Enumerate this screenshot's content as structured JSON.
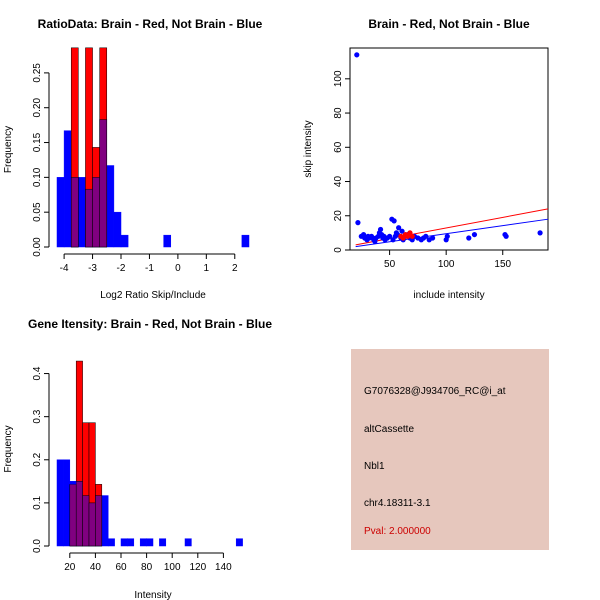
{
  "colors": {
    "brain": "#ff0000",
    "not_brain": "#0000ff",
    "overlap": "#800080",
    "panel_bg": "#e6c7bd",
    "pval_text": "#cc0000"
  },
  "chart_data": [
    {
      "type": "bar",
      "title": "RatioData: Brain - Red, Not Brain - Blue",
      "xlabel": "Log2 Ratio Skip/Include",
      "ylabel": "Frequency",
      "xlim": [
        -4.25,
        2.5
      ],
      "ylim": [
        0,
        0.28
      ],
      "xticks": [
        -4,
        -3,
        -2,
        -1,
        0,
        1,
        2
      ],
      "yticks": [
        0.0,
        0.05,
        0.1,
        0.15,
        0.2,
        0.25
      ],
      "bin_width": 0.25,
      "series": [
        {
          "name": "Not Brain",
          "bins": [
            [
              -4.25,
              0.1
            ],
            [
              -4.0,
              0.167
            ],
            [
              -3.75,
              0.1
            ],
            [
              -3.5,
              0.1
            ],
            [
              -3.25,
              0.083
            ],
            [
              -3.0,
              0.1
            ],
            [
              -2.75,
              0.183
            ],
            [
              -2.5,
              0.117
            ],
            [
              -2.25,
              0.05
            ],
            [
              -2.0,
              0.017
            ],
            [
              -1.25,
              0.0
            ],
            [
              -0.5,
              0.017
            ],
            [
              2.25,
              0.017
            ]
          ]
        },
        {
          "name": "Brain",
          "bins": [
            [
              -3.75,
              0.286
            ],
            [
              -3.25,
              0.286
            ],
            [
              -3.0,
              0.143
            ],
            [
              -2.75,
              0.286
            ]
          ]
        }
      ]
    },
    {
      "type": "scatter",
      "title": "Brain - Red, Not Brain - Blue",
      "xlabel": "include intensity",
      "ylabel": "skip intensity",
      "xlim": [
        15,
        190
      ],
      "ylim": [
        0,
        118
      ],
      "xticks": [
        50,
        100,
        150
      ],
      "yticks": [
        0,
        20,
        40,
        60,
        80,
        100
      ],
      "series": [
        {
          "name": "Not Brain",
          "points": [
            [
              21,
              114
            ],
            [
              22,
              16
            ],
            [
              25,
              8
            ],
            [
              27,
              9
            ],
            [
              28,
              7
            ],
            [
              30,
              6
            ],
            [
              31,
              8
            ],
            [
              32,
              7
            ],
            [
              34,
              8
            ],
            [
              35,
              7
            ],
            [
              36,
              6
            ],
            [
              37,
              5
            ],
            [
              38,
              7
            ],
            [
              40,
              8
            ],
            [
              41,
              10
            ],
            [
              42,
              12
            ],
            [
              43,
              9
            ],
            [
              44,
              7
            ],
            [
              45,
              8
            ],
            [
              46,
              6
            ],
            [
              48,
              7
            ],
            [
              50,
              8
            ],
            [
              52,
              18
            ],
            [
              53,
              6
            ],
            [
              54,
              17
            ],
            [
              55,
              8
            ],
            [
              56,
              10
            ],
            [
              57,
              9
            ],
            [
              58,
              13
            ],
            [
              60,
              7
            ],
            [
              61,
              11
            ],
            [
              62,
              6
            ],
            [
              64,
              8
            ],
            [
              66,
              9
            ],
            [
              68,
              7
            ],
            [
              70,
              6
            ],
            [
              72,
              8
            ],
            [
              75,
              7
            ],
            [
              78,
              6
            ],
            [
              80,
              7
            ],
            [
              82,
              8
            ],
            [
              85,
              6
            ],
            [
              88,
              7
            ],
            [
              100,
              6
            ],
            [
              101,
              8
            ],
            [
              120,
              7
            ],
            [
              125,
              9
            ],
            [
              152,
              9
            ],
            [
              153,
              8
            ],
            [
              183,
              10
            ]
          ]
        },
        {
          "name": "Brain",
          "points": [
            [
              60,
              8
            ],
            [
              62,
              7
            ],
            [
              64,
              9
            ],
            [
              66,
              8
            ],
            [
              68,
              10
            ],
            [
              70,
              8
            ]
          ]
        }
      ],
      "fit_lines": [
        {
          "name": "Brain",
          "from": [
            20,
            3
          ],
          "to": [
            190,
            24
          ]
        },
        {
          "name": "Not Brain",
          "from": [
            20,
            2
          ],
          "to": [
            190,
            18
          ]
        }
      ]
    },
    {
      "type": "bar",
      "title": "Gene Itensity: Brain - Red, Not Brain - Blue",
      "xlabel": "Intensity",
      "ylabel": "Frequency",
      "xlim": [
        10,
        160
      ],
      "ylim": [
        0,
        0.45
      ],
      "xticks": [
        20,
        40,
        60,
        80,
        100,
        120,
        140
      ],
      "yticks": [
        0.0,
        0.1,
        0.2,
        0.3,
        0.4
      ],
      "bin_width": 5,
      "series": [
        {
          "name": "Not Brain",
          "bins": [
            [
              10,
              0.2
            ],
            [
              15,
              0.2
            ],
            [
              20,
              0.15
            ],
            [
              25,
              0.15
            ],
            [
              30,
              0.117
            ],
            [
              35,
              0.1
            ],
            [
              40,
              0.117
            ],
            [
              45,
              0.117
            ],
            [
              50,
              0.017
            ],
            [
              60,
              0.017
            ],
            [
              65,
              0.017
            ],
            [
              75,
              0.017
            ],
            [
              80,
              0.017
            ],
            [
              90,
              0.017
            ],
            [
              110,
              0.017
            ],
            [
              150,
              0.017
            ]
          ]
        },
        {
          "name": "Brain",
          "bins": [
            [
              20,
              0.143
            ],
            [
              25,
              0.429
            ],
            [
              30,
              0.286
            ],
            [
              35,
              0.286
            ],
            [
              40,
              0.143
            ]
          ]
        }
      ]
    }
  ],
  "info": {
    "probe_id": "G7076328@J934706_RC@i_at",
    "event_type": "altCassette",
    "gene": "Nbl1",
    "location": "chr4.18311-3.1",
    "pval": "Pval: 2.000000"
  }
}
